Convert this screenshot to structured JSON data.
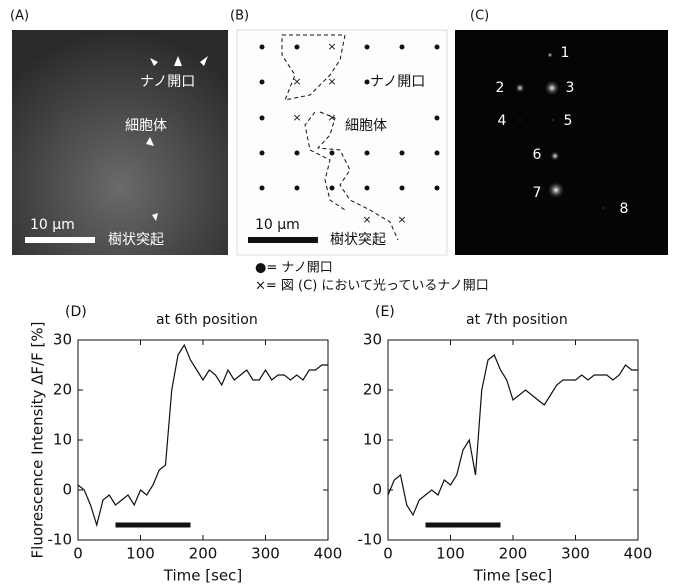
{
  "panels": [
    {
      "label": "(A)",
      "texts": [
        "ナノ開口",
        "細胞体",
        "樹状突起"
      ],
      "scale": "10 μm"
    },
    {
      "label": "(B)",
      "texts": [
        "ナノ開口",
        "細胞体",
        "樹状突起"
      ],
      "scale": "10 μm"
    },
    {
      "label": "(C)",
      "spots": [
        "1",
        "2",
        "3",
        "4",
        "5",
        "6",
        "7",
        "8"
      ]
    }
  ],
  "legend": [
    "●= ナノ開口",
    "×= 図 (C) において光っているナノ開口"
  ],
  "chart_data": [
    {
      "type": "line",
      "panel": "(D)",
      "title": "at 6th position",
      "ylabel": "Fluorescence Intensity ΔF/F [%]",
      "xlabel": "Time [sec]",
      "x": [
        0,
        10,
        20,
        30,
        40,
        50,
        60,
        70,
        80,
        90,
        100,
        110,
        120,
        130,
        140,
        150,
        160,
        170,
        180,
        190,
        200,
        210,
        220,
        230,
        240,
        250,
        260,
        270,
        280,
        290,
        300,
        310,
        320,
        330,
        340,
        350,
        360,
        370,
        380,
        390,
        400
      ],
      "series": [
        {
          "color": "#111111",
          "values": [
            1,
            0,
            -3,
            -7,
            -2,
            -1,
            -3,
            -2,
            -1,
            -3,
            0,
            -1,
            1,
            4,
            5,
            20,
            27,
            29,
            26,
            24,
            22,
            24,
            23,
            21,
            24,
            22,
            23,
            24,
            22,
            22,
            24,
            22,
            23,
            23,
            22,
            23,
            22,
            24,
            24,
            25,
            25
          ]
        }
      ],
      "stimulus": {
        "x": [
          60,
          180
        ],
        "y": -7
      },
      "xlim": [
        0,
        400
      ],
      "ylim": [
        -10,
        30
      ],
      "xticks": [
        0,
        100,
        200,
        300,
        400
      ],
      "yticks": [
        -10,
        0,
        10,
        20,
        30
      ]
    },
    {
      "type": "line",
      "panel": "(E)",
      "title": "at 7th position",
      "xlabel": "Time [sec]",
      "x": [
        0,
        10,
        20,
        30,
        40,
        50,
        60,
        70,
        80,
        90,
        100,
        110,
        120,
        130,
        140,
        150,
        160,
        170,
        180,
        190,
        200,
        210,
        220,
        230,
        240,
        250,
        260,
        270,
        280,
        290,
        300,
        310,
        320,
        330,
        340,
        350,
        360,
        370,
        380,
        390,
        400
      ],
      "series": [
        {
          "color": "#111111",
          "values": [
            -1,
            2,
            3,
            -3,
            -5,
            -2,
            -1,
            0,
            -1,
            2,
            1,
            3,
            8,
            10,
            3,
            20,
            26,
            27,
            24,
            22,
            18,
            19,
            20,
            19,
            18,
            17,
            19,
            21,
            22,
            22,
            22,
            23,
            22,
            23,
            23,
            23,
            22,
            23,
            25,
            24,
            24
          ]
        }
      ],
      "stimulus": {
        "x": [
          60,
          180
        ],
        "y": -7
      },
      "xlim": [
        0,
        400
      ],
      "ylim": [
        -10,
        30
      ],
      "xticks": [
        0,
        100,
        200,
        300,
        400
      ],
      "yticks": [
        -10,
        0,
        10,
        20,
        30
      ]
    }
  ]
}
